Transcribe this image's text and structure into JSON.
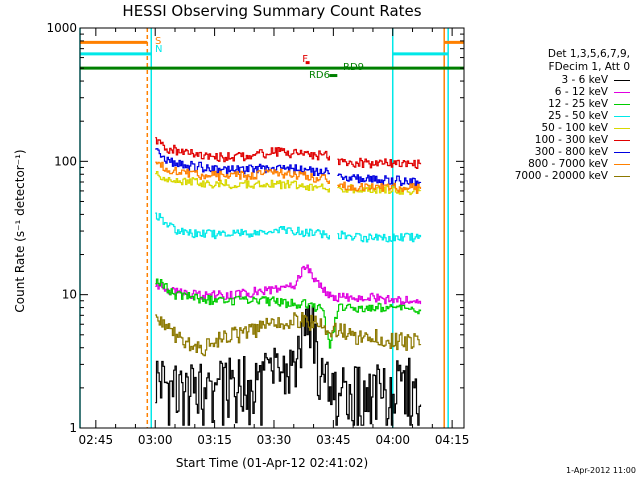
{
  "chart_data": {
    "type": "line",
    "title": "HESSI Observing Summary Count Rates",
    "xlabel": "Start Time (01-Apr-12 02:41:02)",
    "ylabel": "Count Rate (s⁻¹ detector⁻¹)",
    "yscale": "log",
    "ylim": [
      1,
      1000
    ],
    "xlim": [
      "02:41",
      "04:18"
    ],
    "x_ticks": [
      "02:45",
      "03:00",
      "03:15",
      "03:30",
      "03:45",
      "04:00",
      "04:15"
    ],
    "y_ticks": [
      "1",
      "10",
      "100",
      "1000"
    ],
    "legend_title": [
      "Det 1,3,5,6,7,9,",
      "FDecim 1, Att 0"
    ],
    "legend_position": "right",
    "series": [
      {
        "name": "3 - 6 keV",
        "color": "#000000",
        "segments": [
          {
            "x": [
              "03:00",
              "03:05",
              "03:10",
              "03:15",
              "03:20",
              "03:25",
              "03:30",
              "03:35",
              "03:38",
              "03:40",
              "03:42",
              "03:44",
              "03:46",
              "03:50",
              "03:55",
              "04:00",
              "04:05",
              "04:07"
            ],
            "y": [
              2,
              1.5,
              1.5,
              1.6,
              1.7,
              1.8,
              2,
              2.3,
              6,
              4,
              1.8,
              1.5,
              1.6,
              1.5,
              1.5,
              1.6,
              1.7,
              1.5
            ]
          }
        ]
      },
      {
        "name": "6 - 12 keV",
        "color": "#e000e0",
        "segments": [
          {
            "x": [
              "03:00",
              "03:05",
              "03:10",
              "03:15",
              "03:20",
              "03:25",
              "03:30",
              "03:35",
              "03:38",
              "03:40",
              "03:42",
              "03:44",
              "03:46",
              "03:50",
              "03:55",
              "04:00",
              "04:05",
              "04:07"
            ],
            "y": [
              12,
              10.5,
              10,
              10,
              10,
              10.5,
              11,
              12,
              17,
              13,
              11,
              10,
              9.5,
              9.5,
              9.5,
              9,
              9,
              8.5
            ]
          }
        ]
      },
      {
        "name": "12 - 25 keV",
        "color": "#00cc00",
        "segments": [
          {
            "x": [
              "03:00",
              "03:05",
              "03:10",
              "03:15",
              "03:20",
              "03:25",
              "03:30",
              "03:35",
              "03:38",
              "03:40",
              "03:42",
              "03:44",
              "03:46",
              "03:50",
              "03:55",
              "04:00",
              "04:05",
              "04:07"
            ],
            "y": [
              13,
              10,
              9.5,
              9,
              9,
              9,
              9,
              8.5,
              8.5,
              8,
              8,
              4,
              8,
              8,
              8,
              8,
              8,
              7.5
            ]
          }
        ]
      },
      {
        "name": "25 - 50 keV",
        "color": "#00e8e8",
        "segments": [
          {
            "x": [
              "03:00",
              "03:03",
              "03:06",
              "03:10",
              "03:15",
              "03:20",
              "03:25",
              "03:30",
              "03:35",
              "03:40",
              "03:44"
            ],
            "y": [
              40,
              33,
              30,
              29,
              28.5,
              28.5,
              29,
              31,
              30,
              29,
              28
            ]
          },
          {
            "x": [
              "03:46",
              "03:50",
              "03:55",
              "04:00",
              "04:05",
              "04:07"
            ],
            "y": [
              28,
              27,
              27,
              27,
              27,
              27
            ]
          }
        ]
      },
      {
        "name": "50 - 100 keV",
        "color": "#d8d800",
        "segments": [
          {
            "x": [
              "03:00",
              "03:03",
              "03:06",
              "03:10",
              "03:15",
              "03:20",
              "03:25",
              "03:30",
              "03:35",
              "03:40",
              "03:44"
            ],
            "y": [
              80,
              75,
              72,
              70,
              68,
              68,
              68,
              68,
              67,
              65,
              63
            ]
          },
          {
            "x": [
              "03:46",
              "03:50",
              "03:55",
              "04:00",
              "04:05",
              "04:07"
            ],
            "y": [
              63,
              62,
              62,
              61,
              61,
              60
            ]
          }
        ]
      },
      {
        "name": "100 - 300 keV",
        "color": "#e00000",
        "segments": [
          {
            "x": [
              "03:00",
              "03:03",
              "03:06",
              "03:10",
              "03:15",
              "03:20",
              "03:25",
              "03:30",
              "03:35",
              "03:40",
              "03:44"
            ],
            "y": [
              145,
              125,
              120,
              112,
              108,
              108,
              112,
              118,
              115,
              112,
              110
            ]
          },
          {
            "x": [
              "03:46",
              "03:50",
              "03:55",
              "04:00",
              "04:05",
              "04:07"
            ],
            "y": [
              100,
              98,
              97,
              97,
              96,
              95
            ]
          }
        ]
      },
      {
        "name": "300 - 800 keV",
        "color": "#0000e0",
        "segments": [
          {
            "x": [
              "03:00",
              "03:03",
              "03:06",
              "03:10",
              "03:15",
              "03:20",
              "03:25",
              "03:30",
              "03:35",
              "03:40",
              "03:44"
            ],
            "y": [
              120,
              100,
              95,
              92,
              88,
              87,
              88,
              90,
              88,
              85,
              82
            ]
          },
          {
            "x": [
              "03:46",
              "03:50",
              "03:55",
              "04:00",
              "04:05",
              "04:07"
            ],
            "y": [
              76,
              74,
              73,
              72,
              71,
              70
            ]
          }
        ]
      },
      {
        "name": "800 - 7000 keV",
        "color": "#ff8000",
        "segments": [
          {
            "x": [
              "03:00",
              "03:03",
              "03:06",
              "03:10",
              "03:15",
              "03:20",
              "03:25",
              "03:30",
              "03:35",
              "03:40",
              "03:44"
            ],
            "y": [
              100,
              88,
              84,
              80,
              78,
              78,
              79,
              82,
              80,
              76,
              72
            ]
          },
          {
            "x": [
              "03:46",
              "03:50",
              "03:55",
              "04:00",
              "04:05",
              "04:07"
            ],
            "y": [
              67,
              65,
              64,
              64,
              63,
              62
            ]
          }
        ]
      },
      {
        "name": "7000 - 20000 keV",
        "color": "#8c7800",
        "segments": [
          {
            "x": [
              "03:00",
              "03:02",
              "03:05",
              "03:08",
              "03:12",
              "03:15",
              "03:20",
              "03:25",
              "03:30",
              "03:34",
              "03:38",
              "03:42",
              "03:45",
              "03:50",
              "03:55",
              "04:00",
              "04:05",
              "04:07"
            ],
            "y": [
              7,
              6,
              5,
              4.2,
              4,
              4.5,
              5,
              5.5,
              6,
              6.5,
              6.5,
              6,
              5.5,
              5,
              4.8,
              4.5,
              4.5,
              4.2
            ]
          }
        ]
      }
    ],
    "state_bars": [
      {
        "label": "S",
        "color": "#ff8000",
        "y": 780,
        "segments": [
          [
            "02:41",
            "02:58"
          ],
          [
            "04:13",
            "04:18"
          ]
        ]
      },
      {
        "label": "N",
        "color": "#00e8e8",
        "y": 640,
        "segments": [
          [
            "02:41",
            "02:59"
          ],
          [
            "04:00",
            "04:14"
          ]
        ]
      },
      {
        "label": "",
        "color": "#008000",
        "y": 500,
        "segments": [
          [
            "02:41",
            "04:18"
          ]
        ]
      },
      {
        "label": "F",
        "color": "#e00000",
        "y": 550,
        "segments": [
          [
            "03:38",
            "03:39"
          ]
        ]
      },
      {
        "label": "RD6",
        "color": "#008000",
        "y": 440,
        "segments": [
          [
            "03:44",
            "03:46"
          ]
        ]
      },
      {
        "label": "RD9",
        "color": "#008000",
        "y": 500,
        "segments": []
      }
    ],
    "vertical_markers": [
      {
        "x": "02:41",
        "color": "#00e8e8",
        "style": "solid"
      },
      {
        "x": "02:58",
        "color": "#ff8000",
        "style": "dashed"
      },
      {
        "x": "02:59",
        "color": "#00e8e8",
        "style": "solid"
      },
      {
        "x": "04:00",
        "color": "#00e8e8",
        "style": "solid"
      },
      {
        "x": "04:13",
        "color": "#ff8000",
        "style": "solid"
      },
      {
        "x": "04:14",
        "color": "#00e8e8",
        "style": "solid"
      }
    ],
    "footer_date": "1-Apr-2012 11:00"
  }
}
